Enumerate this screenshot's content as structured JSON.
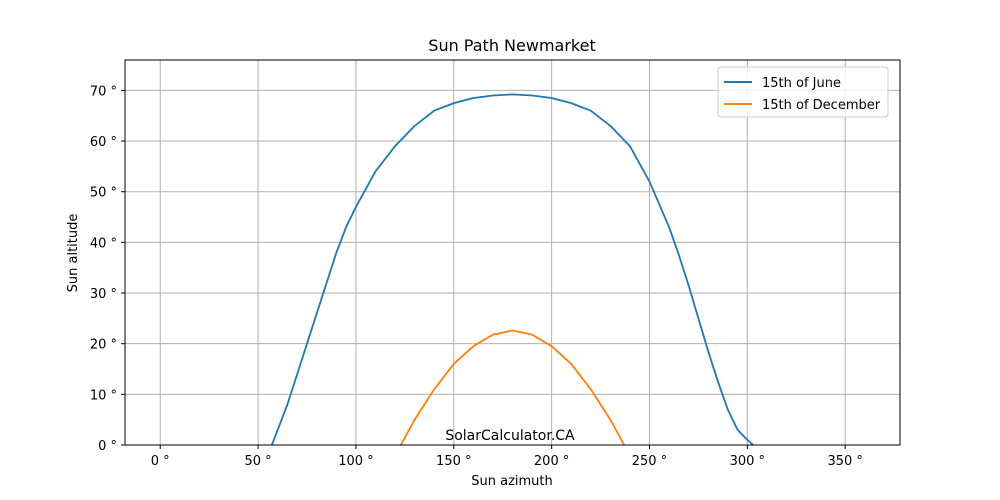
{
  "chart_data": {
    "type": "line",
    "title": "Sun Path Newmarket",
    "xlabel": "Sun azimuth",
    "ylabel": "Sun altitude",
    "xlim": [
      -18,
      378
    ],
    "ylim": [
      0,
      76
    ],
    "xticks": [
      0,
      50,
      100,
      150,
      200,
      250,
      300,
      350
    ],
    "yticks": [
      0,
      10,
      20,
      30,
      40,
      50,
      60,
      70
    ],
    "xtick_labels": [
      "0 °",
      "50 °",
      "100 °",
      "150 °",
      "200 °",
      "250 °",
      "300 °",
      "350 °"
    ],
    "ytick_labels": [
      "0 °",
      "10 °",
      "20 °",
      "30 °",
      "40 °",
      "50 °",
      "60 °",
      "70 °"
    ],
    "grid": true,
    "legend_position": "top-right",
    "series": [
      {
        "name": "15th of June",
        "color": "#1f77b4",
        "x": [
          57,
          60,
          65,
          70,
          75,
          80,
          85,
          90,
          95,
          100,
          110,
          120,
          130,
          140,
          150,
          160,
          170,
          180,
          190,
          200,
          210,
          220,
          230,
          240,
          250,
          260,
          265,
          270,
          275,
          280,
          285,
          290,
          295,
          300,
          303
        ],
        "y": [
          0,
          3,
          8,
          14,
          20,
          26,
          32,
          38,
          43,
          47,
          54,
          59,
          63,
          66,
          67.5,
          68.5,
          69,
          69.2,
          69,
          68.5,
          67.5,
          66,
          63,
          59,
          52,
          43,
          37.5,
          31.5,
          25,
          18.5,
          12.5,
          7,
          3,
          1,
          0
        ]
      },
      {
        "name": "15th of December",
        "color": "#ff7f0e",
        "x": [
          123,
          130,
          140,
          150,
          160,
          170,
          180,
          190,
          200,
          210,
          220,
          230,
          237
        ],
        "y": [
          0,
          5,
          11,
          16,
          19.5,
          21.8,
          22.6,
          21.8,
          19.5,
          16,
          11,
          5,
          0
        ]
      }
    ],
    "annotation": "SolarCalculator.CA"
  }
}
